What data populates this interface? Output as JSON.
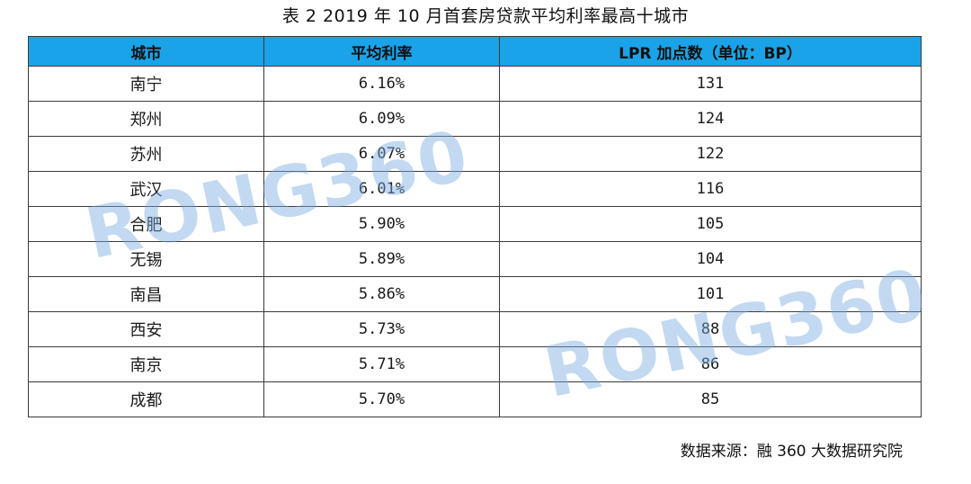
{
  "title": "表 2  2019 年 10 月首套房贷款平均利率最高十城市",
  "table": {
    "headers": [
      "城市",
      "平均利率",
      "LPR 加点数（单位：BP）"
    ],
    "rows": [
      {
        "city": "南宁",
        "rate": "6.16%",
        "bp": "131"
      },
      {
        "city": "郑州",
        "rate": "6.09%",
        "bp": "124"
      },
      {
        "city": "苏州",
        "rate": "6.07%",
        "bp": "122"
      },
      {
        "city": "武汉",
        "rate": "6.01%",
        "bp": "116"
      },
      {
        "city": "合肥",
        "rate": "5.90%",
        "bp": "105"
      },
      {
        "city": "无锡",
        "rate": "5.89%",
        "bp": "104"
      },
      {
        "city": "南昌",
        "rate": "5.86%",
        "bp": "101"
      },
      {
        "city": "西安",
        "rate": "5.73%",
        "bp": "88"
      },
      {
        "city": "南京",
        "rate": "5.71%",
        "bp": "86"
      },
      {
        "city": "成都",
        "rate": "5.70%",
        "bp": "85"
      }
    ]
  },
  "footer": "数据来源：融 360 大数据研究院",
  "watermark": "RONG360",
  "colors": {
    "header_bg": "#1aa3e8",
    "watermark": "#78aae1"
  }
}
